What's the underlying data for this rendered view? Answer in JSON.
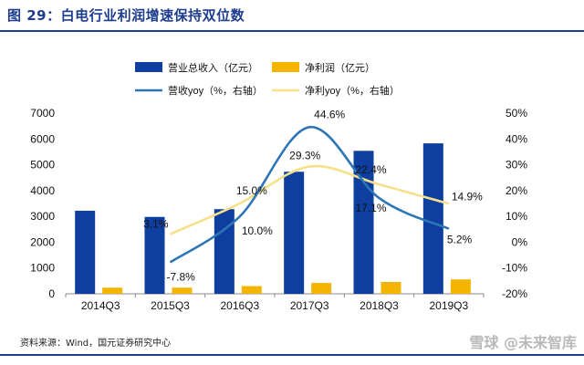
{
  "header": {
    "title": "图 29：白电行业利润增速保持双位数"
  },
  "footer": {
    "source": "资料来源：Wind，国元证券研究中心",
    "watermark": "雪球 @未来智库"
  },
  "chart_data": {
    "type": "bar",
    "title": "",
    "categories": [
      "2014Q3",
      "2015Q3",
      "2016Q3",
      "2017Q3",
      "2018Q3",
      "2019Q3"
    ],
    "series": [
      {
        "name": "营业总收入（亿元）",
        "type": "bar",
        "axis": "left",
        "color": "#0e3e9f",
        "values": [
          3220,
          2980,
          3280,
          4730,
          5540,
          5830
        ]
      },
      {
        "name": "净利润（亿元）",
        "type": "bar",
        "axis": "left",
        "color": "#f5b400",
        "values": [
          240,
          240,
          300,
          420,
          460,
          560
        ]
      },
      {
        "name": "营收yoy（%，右轴）",
        "type": "line",
        "axis": "right",
        "color": "#2e75b6",
        "values": [
          null,
          -7.8,
          10.0,
          44.6,
          17.1,
          5.2
        ],
        "labels": [
          "",
          "-7.8%",
          "10.0%",
          "44.6%",
          "17.1%",
          "5.2%"
        ]
      },
      {
        "name": "净利yoy（%，右轴）",
        "type": "line",
        "axis": "right",
        "color": "#f7e08a",
        "values": [
          null,
          3.1,
          15.0,
          29.3,
          22.4,
          14.9
        ],
        "labels": [
          "",
          "3.1%",
          "15.0%",
          "29.3%",
          "22.4%",
          "14.9%"
        ]
      }
    ],
    "y_left": {
      "min": 0,
      "max": 7000,
      "ticks": [
        "0",
        "1000",
        "2000",
        "3000",
        "4000",
        "5000",
        "6000",
        "7000"
      ]
    },
    "y_right": {
      "min": -20,
      "max": 50,
      "ticks": [
        "-20%",
        "-10%",
        "0%",
        "10%",
        "20%",
        "30%",
        "40%",
        "50%"
      ]
    },
    "legend_position": "top",
    "grid": false
  }
}
